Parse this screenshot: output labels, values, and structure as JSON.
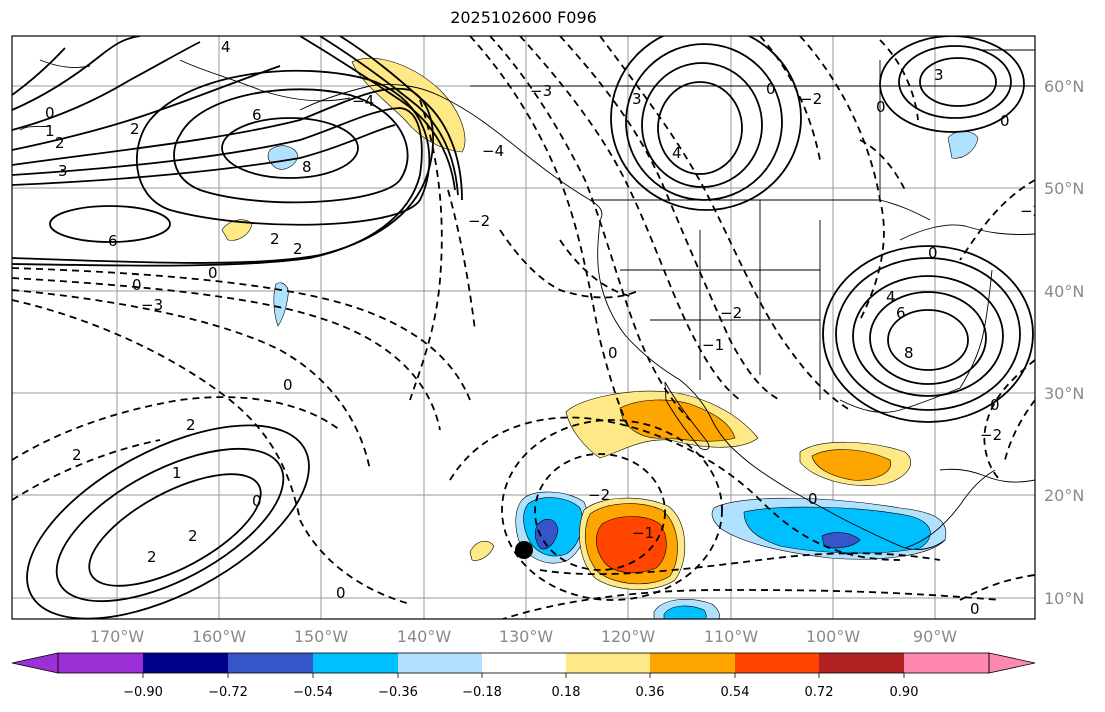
{
  "title": "2025102600 F096",
  "map": {
    "lon_ticks": [
      "170°W",
      "160°W",
      "150°W",
      "140°W",
      "130°W",
      "120°W",
      "110°W",
      "100°W",
      "90°W"
    ],
    "lat_ticks": [
      "60°N",
      "50°N",
      "40°N",
      "30°N",
      "20°N",
      "10°N"
    ],
    "contour_labels": [
      "0",
      "1",
      "2",
      "3",
      "4",
      "6",
      "8",
      "0",
      "−1",
      "−2",
      "−3",
      "−4",
      "−1",
      "−2",
      "2",
      "0"
    ],
    "marker": "black-dot-storm-location"
  },
  "colorbar": {
    "ticks": [
      "−0.90",
      "−0.72",
      "−0.54",
      "−0.36",
      "−0.18",
      "0.18",
      "0.36",
      "0.54",
      "0.72",
      "0.90"
    ],
    "colors": [
      "#9b30d6",
      "#00008b",
      "#3655c8",
      "#00bfff",
      "#b0e2ff",
      "#ffffff",
      "#ffe987",
      "#ffa500",
      "#ff4500",
      "#b22222",
      "#ff88b0"
    ]
  }
}
